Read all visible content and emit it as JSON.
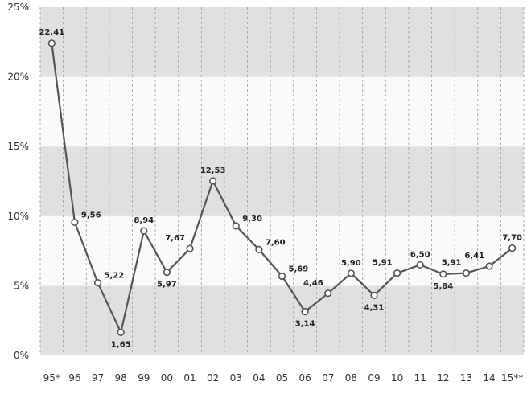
{
  "chart_data": {
    "type": "line",
    "categories": [
      "95*",
      "96",
      "97",
      "98",
      "99",
      "00",
      "01",
      "02",
      "03",
      "04",
      "05",
      "06",
      "07",
      "08",
      "09",
      "10",
      "11",
      "12",
      "13",
      "14",
      "15**"
    ],
    "series": [
      {
        "values": [
          22.41,
          9.56,
          5.22,
          1.65,
          8.94,
          5.97,
          7.67,
          12.53,
          9.3,
          7.6,
          5.69,
          3.14,
          4.46,
          5.9,
          4.31,
          5.91,
          6.5,
          5.84,
          5.91,
          6.41,
          7.7
        ],
        "data_labels": [
          "22,41",
          "9,56",
          "5,22",
          "1,65",
          "8,94",
          "5,97",
          "7,67",
          "12,53",
          "9,30",
          "7,60",
          "5,69",
          "3,14",
          "4,46",
          "5,90",
          "4,31",
          "5,91",
          "6,50",
          "5,84",
          "5,91",
          "6,41",
          "7,70"
        ]
      }
    ],
    "y_ticks": [
      {
        "value": 0,
        "label": "0%"
      },
      {
        "value": 5,
        "label": "5%"
      },
      {
        "value": 10,
        "label": "10%"
      },
      {
        "value": 15,
        "label": "15%"
      },
      {
        "value": 20,
        "label": "20%"
      },
      {
        "value": 25,
        "label": "25%"
      }
    ],
    "ylim": [
      0,
      25
    ],
    "title": "",
    "xlabel": "",
    "ylabel": "",
    "grid": "vertical dashed lines, alternating horizontal bands",
    "colors": {
      "band_dark": "#e0e0e0",
      "band_light": "#fafafa",
      "line": "#555555",
      "marker_fill": "#ffffff",
      "gridline": "#999999"
    }
  }
}
